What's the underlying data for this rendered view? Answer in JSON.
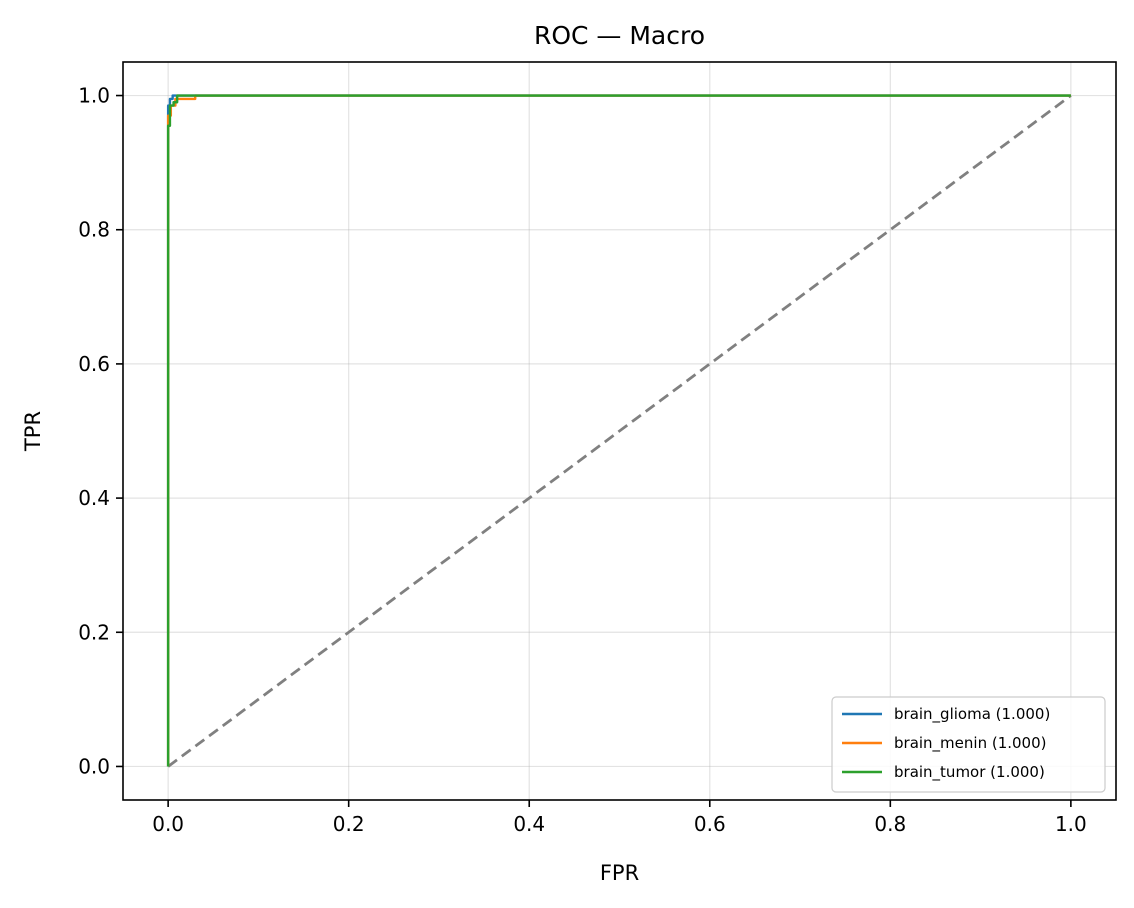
{
  "chart_data": {
    "type": "line",
    "title": "ROC — Macro",
    "xlabel": "FPR",
    "ylabel": "TPR",
    "xlim": [
      -0.05,
      1.05
    ],
    "ylim": [
      -0.05,
      1.05
    ],
    "xticks": [
      0.0,
      0.2,
      0.4,
      0.6,
      0.8,
      1.0
    ],
    "xtick_labels": [
      "0.0",
      "0.2",
      "0.4",
      "0.6",
      "0.8",
      "1.0"
    ],
    "yticks": [
      0.0,
      0.2,
      0.4,
      0.6,
      0.8,
      1.0
    ],
    "ytick_labels": [
      "0.0",
      "0.2",
      "0.4",
      "0.6",
      "0.8",
      "1.0"
    ],
    "grid": true,
    "legend_position": "lower-right",
    "series": [
      {
        "name": "brain_glioma (1.000)",
        "color": "#1f77b4",
        "x": [
          0.0,
          0.0,
          0.002,
          0.002,
          0.005,
          0.005,
          1.0
        ],
        "y": [
          0.0,
          0.985,
          0.985,
          0.995,
          0.995,
          1.0,
          1.0
        ]
      },
      {
        "name": "brain_menin (1.000)",
        "color": "#ff7f0e",
        "x": [
          0.0,
          0.0,
          0.003,
          0.003,
          0.008,
          0.008,
          0.03,
          0.03,
          1.0
        ],
        "y": [
          0.0,
          0.97,
          0.97,
          0.985,
          0.985,
          0.995,
          0.995,
          1.0,
          1.0
        ]
      },
      {
        "name": "brain_tumor (1.000)",
        "color": "#2ca02c",
        "x": [
          0.0,
          0.0,
          0.002,
          0.002,
          0.006,
          0.006,
          0.01,
          0.01,
          1.0
        ],
        "y": [
          0.0,
          0.955,
          0.955,
          0.985,
          0.985,
          0.99,
          0.99,
          1.0,
          1.0
        ]
      },
      {
        "role": "chance-reference",
        "color": "#808080",
        "dashed": true,
        "x": [
          0.0,
          1.0
        ],
        "y": [
          0.0,
          1.0
        ]
      }
    ]
  }
}
